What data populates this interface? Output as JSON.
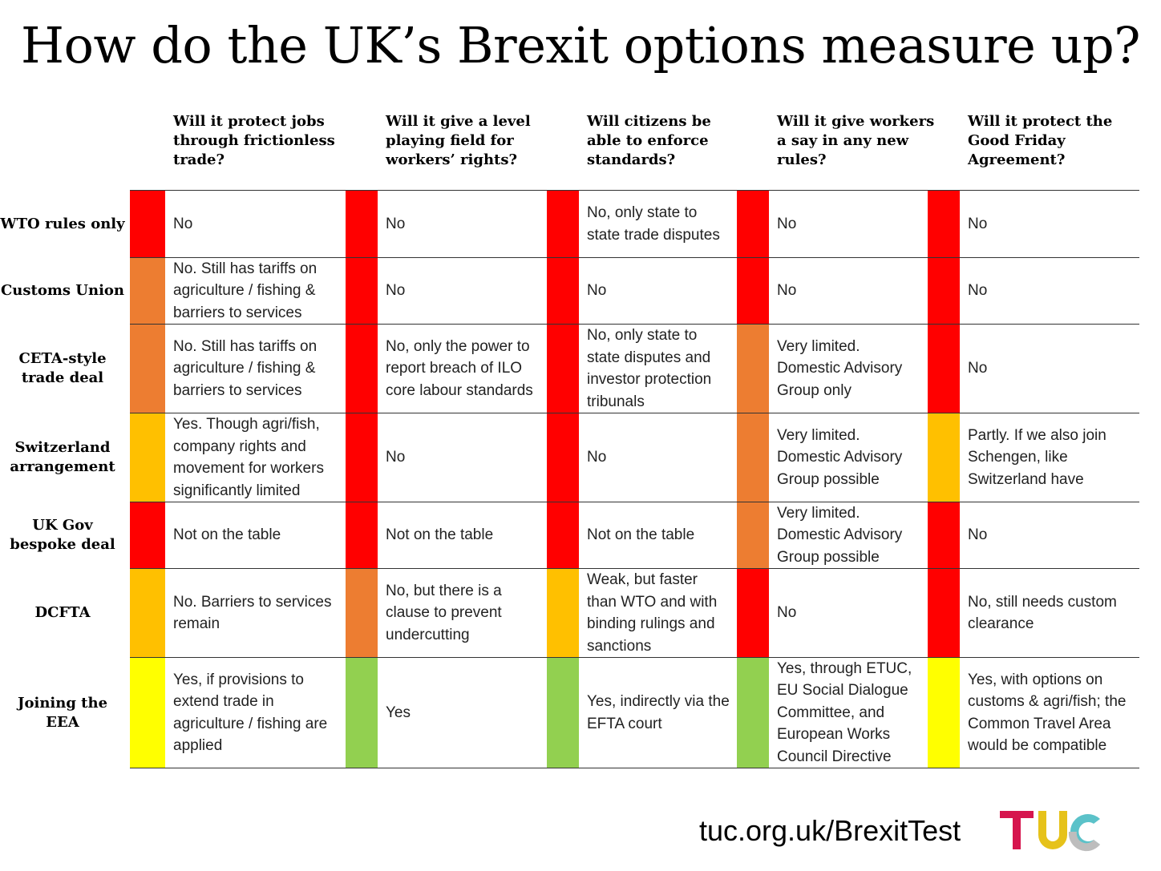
{
  "title": "How do the UK’s Brexit options measure up?",
  "colors": {
    "red": "#FF0000",
    "orange": "#ED7D31",
    "amber": "#FFC000",
    "yellow": "#FFFF00",
    "green": "#92D050"
  },
  "columns": [
    "Will it protect jobs through frictionless trade?",
    "Will it give a level playing field for workers’ rights?",
    "Will citizens be able to enforce standards?",
    "Will it give workers a say in any new rules?",
    "Will it protect the Good Friday Agreement?"
  ],
  "rows": [
    {
      "label": "WTO rules only",
      "cells": [
        {
          "status": "red",
          "text": "No"
        },
        {
          "status": "red",
          "text": "No"
        },
        {
          "status": "red",
          "text": "No, only state to state trade disputes"
        },
        {
          "status": "red",
          "text": "No"
        },
        {
          "status": "red",
          "text": "No"
        }
      ]
    },
    {
      "label": "Customs Union",
      "cells": [
        {
          "status": "orange",
          "text": "No. Still has tariffs on agriculture / fishing & barriers to services"
        },
        {
          "status": "red",
          "text": "No"
        },
        {
          "status": "red",
          "text": "No"
        },
        {
          "status": "red",
          "text": "No"
        },
        {
          "status": "red",
          "text": "No"
        }
      ]
    },
    {
      "label": "CETA-style trade deal",
      "cells": [
        {
          "status": "orange",
          "text": "No. Still has tariffs on agriculture / fishing & barriers to services"
        },
        {
          "status": "red",
          "text": "No, only the power to report breach of ILO core labour standards"
        },
        {
          "status": "red",
          "text": "No, only state to state disputes and investor protection tribunals"
        },
        {
          "status": "orange",
          "text": "Very limited. Domestic Advisory Group only"
        },
        {
          "status": "red",
          "text": "No"
        }
      ]
    },
    {
      "label": "Switzerland arrangement",
      "cells": [
        {
          "status": "amber",
          "text": "Yes. Though agri/fish, company rights and movement for workers significantly limited"
        },
        {
          "status": "red",
          "text": "No"
        },
        {
          "status": "red",
          "text": "No"
        },
        {
          "status": "orange",
          "text": "Very limited. Domestic Advisory Group possible"
        },
        {
          "status": "amber",
          "text": "Partly. If we also join Schengen, like Switzerland have"
        }
      ]
    },
    {
      "label": "UK Gov bespoke deal",
      "cells": [
        {
          "status": "red",
          "text": "Not on the table"
        },
        {
          "status": "red",
          "text": "Not on the table"
        },
        {
          "status": "red",
          "text": "Not on the table"
        },
        {
          "status": "orange",
          "text": "Very limited. Domestic Advisory Group possible"
        },
        {
          "status": "red",
          "text": "No"
        }
      ]
    },
    {
      "label": "DCFTA",
      "cells": [
        {
          "status": "amber",
          "text": "No. Barriers to services remain"
        },
        {
          "status": "orange",
          "text": "No, but there is a clause to prevent undercutting"
        },
        {
          "status": "amber",
          "text": "Weak, but faster than WTO and with binding rulings and sanctions"
        },
        {
          "status": "red",
          "text": "No"
        },
        {
          "status": "red",
          "text": "No, still needs custom clearance"
        }
      ]
    },
    {
      "label": "Joining the EEA",
      "cells": [
        {
          "status": "yellow",
          "text": "Yes, if provisions to extend trade in agriculture / fishing are applied"
        },
        {
          "status": "green",
          "text": "Yes"
        },
        {
          "status": "green",
          "text": "Yes, indirectly via the EFTA court"
        },
        {
          "status": "green",
          "text": "Yes, through ETUC, EU Social Dialogue Committee, and European Works Council Directive"
        },
        {
          "status": "yellow",
          "text": "Yes, with options on customs & agri/fish; the Common Travel Area would be compatible"
        }
      ]
    }
  ],
  "footer": {
    "url": "tuc.org.uk/BrexitTest",
    "logo": "TUC"
  }
}
